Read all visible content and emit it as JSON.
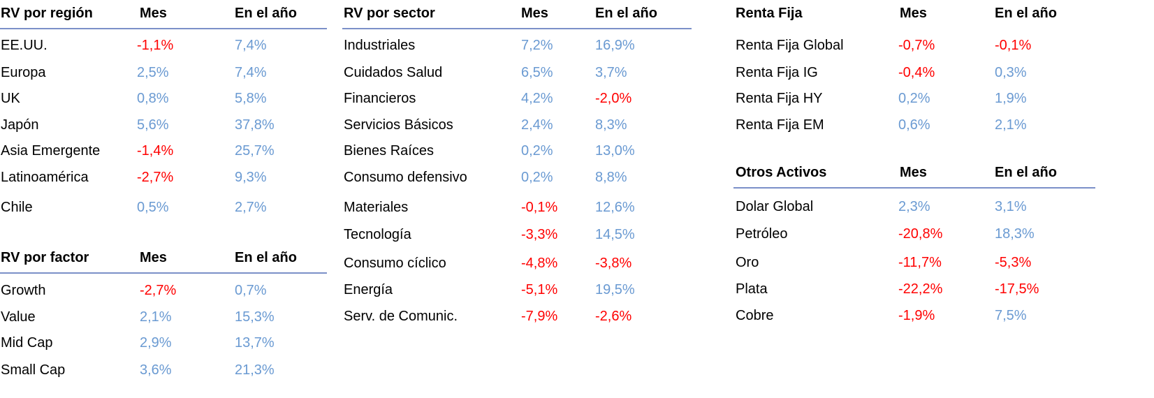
{
  "colors": {
    "positive": "#6a9ad2",
    "negative": "#ff0000",
    "rule": "#7b90c8"
  },
  "tables": {
    "region": {
      "title": "RV por región",
      "col_month": "Mes",
      "col_year": "En el año",
      "rows": [
        {
          "name": "EE.UU.",
          "month": "-1,1%",
          "year": "7,4%"
        },
        {
          "name": "Europa",
          "month": "2,5%",
          "year": "7,4%"
        },
        {
          "name": "UK",
          "month": "0,8%",
          "year": "5,8%"
        },
        {
          "name": "Japón",
          "month": "5,6%",
          "year": "37,8%"
        },
        {
          "name": "Asia Emergente",
          "month": "-1,4%",
          "year": "25,7%"
        },
        {
          "name": "Latinoamérica",
          "month": "-2,7%",
          "year": "9,3%"
        },
        {
          "name": "Chile",
          "month": "0,5%",
          "year": "2,7%"
        }
      ]
    },
    "factor": {
      "title": "RV por factor",
      "col_month": "Mes",
      "col_year": "En el año",
      "rows": [
        {
          "name": "Growth",
          "month": "-2,7%",
          "year": "0,7%"
        },
        {
          "name": "Value",
          "month": "2,1%",
          "year": "15,3%"
        },
        {
          "name": "Mid Cap",
          "month": "2,9%",
          "year": "13,7%"
        },
        {
          "name": "Small Cap",
          "month": "3,6%",
          "year": "21,3%"
        }
      ]
    },
    "sector": {
      "title": "RV por sector",
      "col_month": "Mes",
      "col_year": "En el año",
      "rows": [
        {
          "name": "Industriales",
          "month": "7,2%",
          "year": "16,9%"
        },
        {
          "name": "Cuidados Salud",
          "month": "6,5%",
          "year": "3,7%"
        },
        {
          "name": "Financieros",
          "month": "4,2%",
          "year": "-2,0%"
        },
        {
          "name": "Servicios Básicos",
          "month": "2,4%",
          "year": "8,3%"
        },
        {
          "name": "Bienes Raíces",
          "month": "0,2%",
          "year": "13,0%"
        },
        {
          "name": "Consumo defensivo",
          "month": "0,2%",
          "year": "8,8%"
        },
        {
          "name": "Materiales",
          "month": "-0,1%",
          "year": "12,6%"
        },
        {
          "name": "Tecnología",
          "month": "-3,3%",
          "year": "14,5%"
        },
        {
          "name": "Consumo cíclico",
          "month": "-4,8%",
          "year": "-3,8%"
        },
        {
          "name": "Energía",
          "month": "-5,1%",
          "year": "19,5%"
        },
        {
          "name": "Serv. de Comunic.",
          "month": "-7,9%",
          "year": "-2,6%"
        }
      ]
    },
    "fixed_income": {
      "title": "Renta Fija",
      "col_month": "Mes",
      "col_year": "En el año",
      "rows": [
        {
          "name": "Renta Fija Global",
          "month": "-0,7%",
          "year": "-0,1%"
        },
        {
          "name": "Renta Fija IG",
          "month": "-0,4%",
          "year": "0,3%"
        },
        {
          "name": "Renta Fija HY",
          "month": "0,2%",
          "year": "1,9%"
        },
        {
          "name": "Renta Fija EM",
          "month": "0,6%",
          "year": "2,1%"
        }
      ]
    },
    "other": {
      "title": "Otros Activos",
      "col_month": "Mes",
      "col_year": "En el año",
      "rows": [
        {
          "name": "Dolar Global",
          "month": "2,3%",
          "year": "3,1%"
        },
        {
          "name": "Petróleo",
          "month": "-20,8%",
          "year": "18,3%"
        },
        {
          "name": "Oro",
          "month": "-11,7%",
          "year": "-5,3%"
        },
        {
          "name": "Plata",
          "month": "-22,2%",
          "year": "-17,5%"
        },
        {
          "name": "Cobre",
          "month": "-1,9%",
          "year": "7,5%"
        }
      ]
    }
  }
}
